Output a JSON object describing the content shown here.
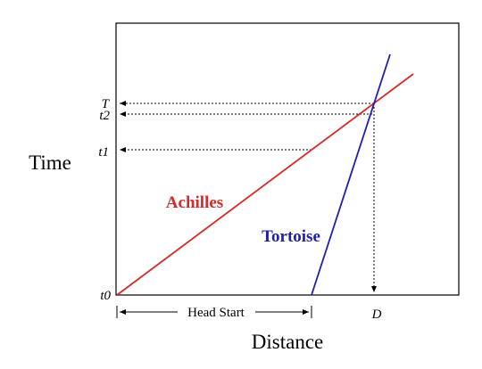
{
  "axes": {
    "y_label": "Time",
    "x_label": "Distance"
  },
  "time_marks": [
    "T",
    "t2",
    "t1",
    "t0"
  ],
  "distance_mark": "D",
  "head_start": "Head Start",
  "lines": [
    {
      "label": "Achilles"
    },
    {
      "label": "Tortoise"
    }
  ]
}
